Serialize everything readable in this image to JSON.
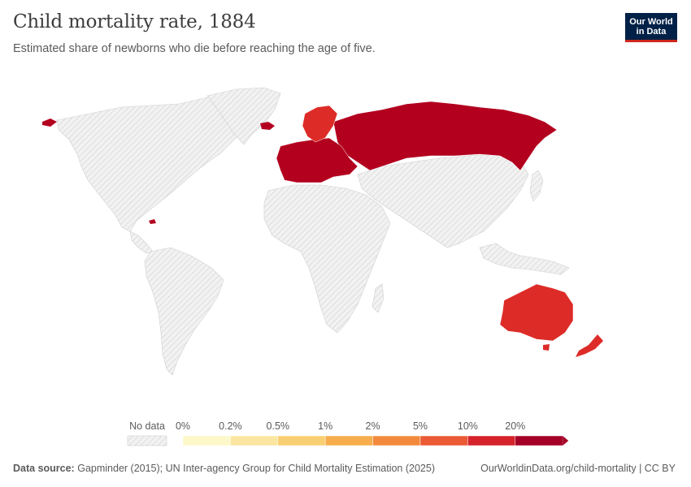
{
  "title": "Child mortality rate, 1884",
  "subtitle": "Estimated share of newborns who die before reaching the age of five.",
  "logo": {
    "line1": "Our World",
    "line2": "in Data"
  },
  "legend": {
    "no_data_label": "No data",
    "bins": [
      {
        "label": "0%",
        "color": "#fdf8c9"
      },
      {
        "label": "0.2%",
        "color": "#fbe6a1"
      },
      {
        "label": "0.5%",
        "color": "#f9cf73"
      },
      {
        "label": "1%",
        "color": "#f7ad4b"
      },
      {
        "label": "2%",
        "color": "#f38a3b"
      },
      {
        "label": "5%",
        "color": "#ea5a34"
      },
      {
        "label": "10%",
        "color": "#d5222b"
      },
      {
        "label": "20%",
        "color": "#a50026"
      }
    ]
  },
  "colors": {
    "no_data": "#ececec",
    "high": "#b3001f",
    "mid": "#dd2c28",
    "very_high": "#a50026"
  },
  "regions": [
    {
      "name": "Russia",
      "category": "20%+"
    },
    {
      "name": "Western Europe",
      "category": "20%+"
    },
    {
      "name": "Scandinavia",
      "category": "10-20%"
    },
    {
      "name": "Australia",
      "category": "10-20%"
    },
    {
      "name": "New Zealand",
      "category": "10-20%"
    }
  ],
  "footer": {
    "source_label": "Data source:",
    "source_text": "Gapminder (2015); UN Inter-agency Group for Child Mortality Estimation (2025)",
    "url": "OurWorldinData.org/child-mortality | CC BY"
  }
}
